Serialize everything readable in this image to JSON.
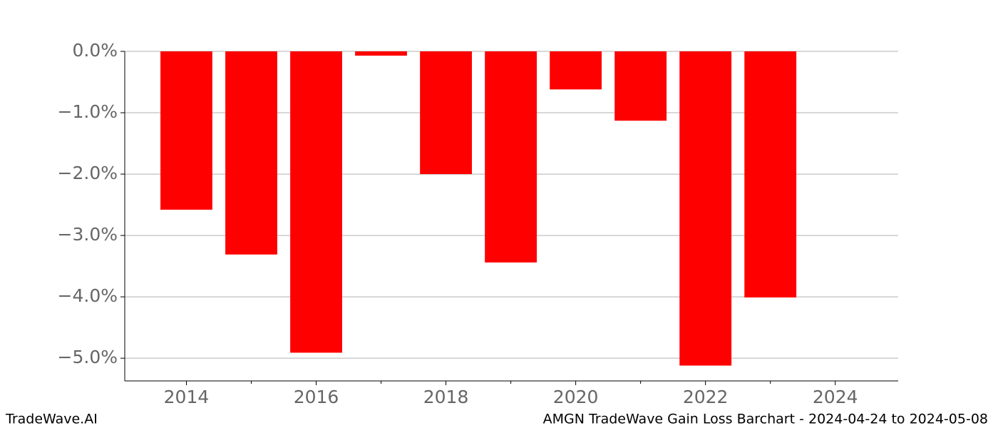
{
  "chart_data": {
    "type": "bar",
    "title": "AMGN TradeWave Gain Loss Barchart - 2024-04-24 to 2024-05-08",
    "brand": "TradeWave.AI",
    "x": [
      2014,
      2015,
      2016,
      2017,
      2018,
      2019,
      2020,
      2021,
      2022,
      2023
    ],
    "values": [
      -2.58,
      -3.31,
      -4.91,
      -0.07,
      -2.0,
      -3.44,
      -0.62,
      -1.13,
      -5.12,
      -4.01
    ],
    "color": "#ff0000",
    "xlim": [
      2013.05,
      2024.97
    ],
    "xticks": [
      2014,
      2016,
      2018,
      2020,
      2022,
      2024
    ],
    "minor_xticks": [
      2015,
      2017,
      2019,
      2021,
      2023
    ],
    "ylim": [
      -5.37,
      0
    ],
    "yticks": [
      {
        "value": 0,
        "label": "0.0%"
      },
      {
        "value": -1,
        "label": "−1.0%"
      },
      {
        "value": -2,
        "label": "−2.0%"
      },
      {
        "value": -3,
        "label": "−3.0%"
      },
      {
        "value": -4,
        "label": "−4.0%"
      },
      {
        "value": -5,
        "label": "−5.0%"
      }
    ],
    "grid": true
  }
}
